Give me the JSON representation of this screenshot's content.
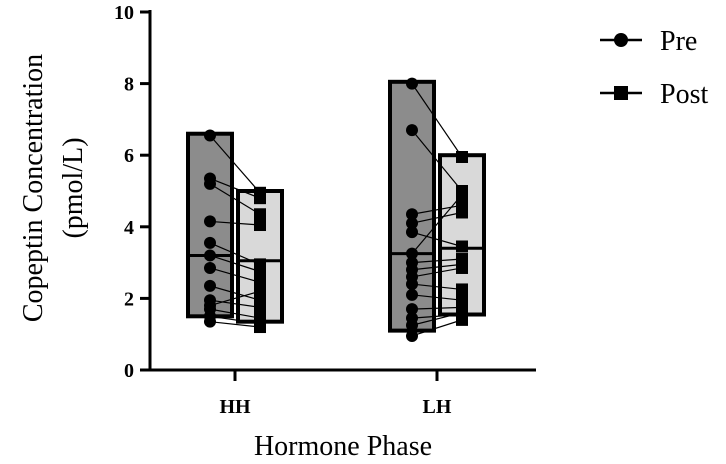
{
  "chart_data": {
    "type": "bar",
    "subtype": "floating-bar with paired points",
    "title": "",
    "xlabel": "Hormone Phase",
    "ylabel_line1": "Copeptin Concentration",
    "ylabel_line2": "(pmol/L)",
    "ylim": [
      0,
      10
    ],
    "yticks": [
      "0",
      "2",
      "4",
      "6",
      "8",
      "10"
    ],
    "grid": false,
    "legend_position": "top-right",
    "categories": [
      "HH",
      "LH"
    ],
    "series": [
      {
        "name": "Pre",
        "marker": "circle",
        "fill": "#8c8c8c"
      },
      {
        "name": "Post",
        "marker": "square",
        "fill": "#d9d9d9"
      }
    ],
    "groups": [
      {
        "category": "HH",
        "pre": {
          "min": 1.5,
          "max": 6.6,
          "median": 3.2
        },
        "post": {
          "min": 1.35,
          "max": 5.0,
          "median": 3.05
        },
        "pairs": [
          [
            6.55,
            4.95
          ],
          [
            5.35,
            4.8
          ],
          [
            5.2,
            4.35
          ],
          [
            4.15,
            4.05
          ],
          [
            3.55,
            2.95
          ],
          [
            3.2,
            2.75
          ],
          [
            2.85,
            2.45
          ],
          [
            2.35,
            1.95
          ],
          [
            1.95,
            1.75
          ],
          [
            1.8,
            2.2
          ],
          [
            1.7,
            1.45
          ],
          [
            1.5,
            1.3
          ],
          [
            1.35,
            1.2
          ]
        ]
      },
      {
        "category": "LH",
        "pre": {
          "min": 1.1,
          "max": 8.05,
          "median": 3.25
        },
        "post": {
          "min": 1.55,
          "max": 6.0,
          "median": 3.4
        },
        "pairs": [
          [
            8.0,
            5.95
          ],
          [
            6.7,
            5.0
          ],
          [
            4.35,
            4.6
          ],
          [
            4.1,
            4.4
          ],
          [
            3.85,
            3.45
          ],
          [
            3.25,
            4.9
          ],
          [
            3.0,
            3.1
          ],
          [
            2.8,
            2.95
          ],
          [
            2.6,
            2.85
          ],
          [
            2.4,
            2.25
          ],
          [
            2.1,
            1.95
          ],
          [
            1.7,
            1.75
          ],
          [
            1.45,
            1.55
          ],
          [
            1.25,
            1.6
          ],
          [
            0.95,
            1.4
          ]
        ]
      }
    ]
  }
}
